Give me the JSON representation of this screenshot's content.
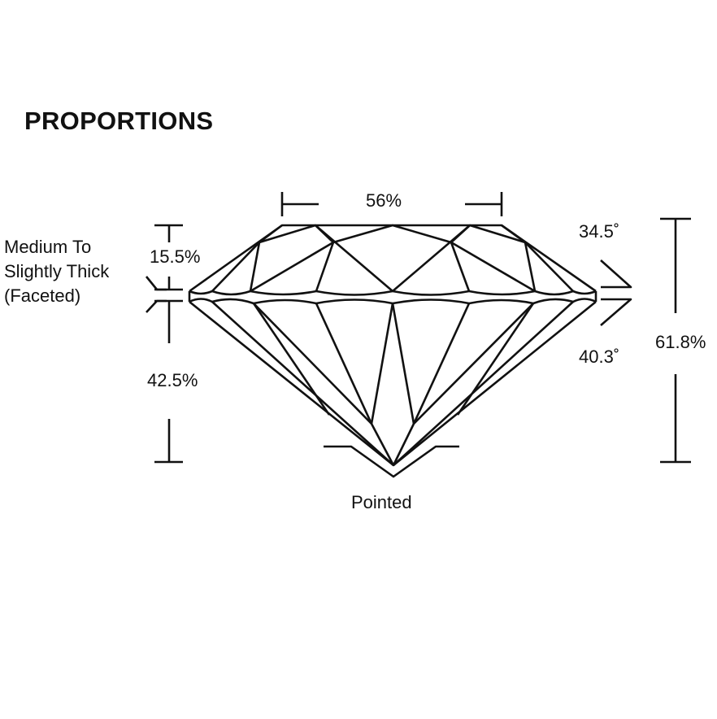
{
  "title": "PROPORTIONS",
  "table_percent": "56%",
  "crown_height": "15.5%",
  "girdle": {
    "lines": [
      "Medium To",
      "Slightly Thick",
      "(Faceted)"
    ]
  },
  "pavilion_depth": "42.5%",
  "crown_angle": "34.5˚",
  "pavilion_angle": "40.3˚",
  "total_depth": "61.8%",
  "culet": "Pointed",
  "colors": {
    "line": "#111111",
    "background": "#ffffff"
  }
}
